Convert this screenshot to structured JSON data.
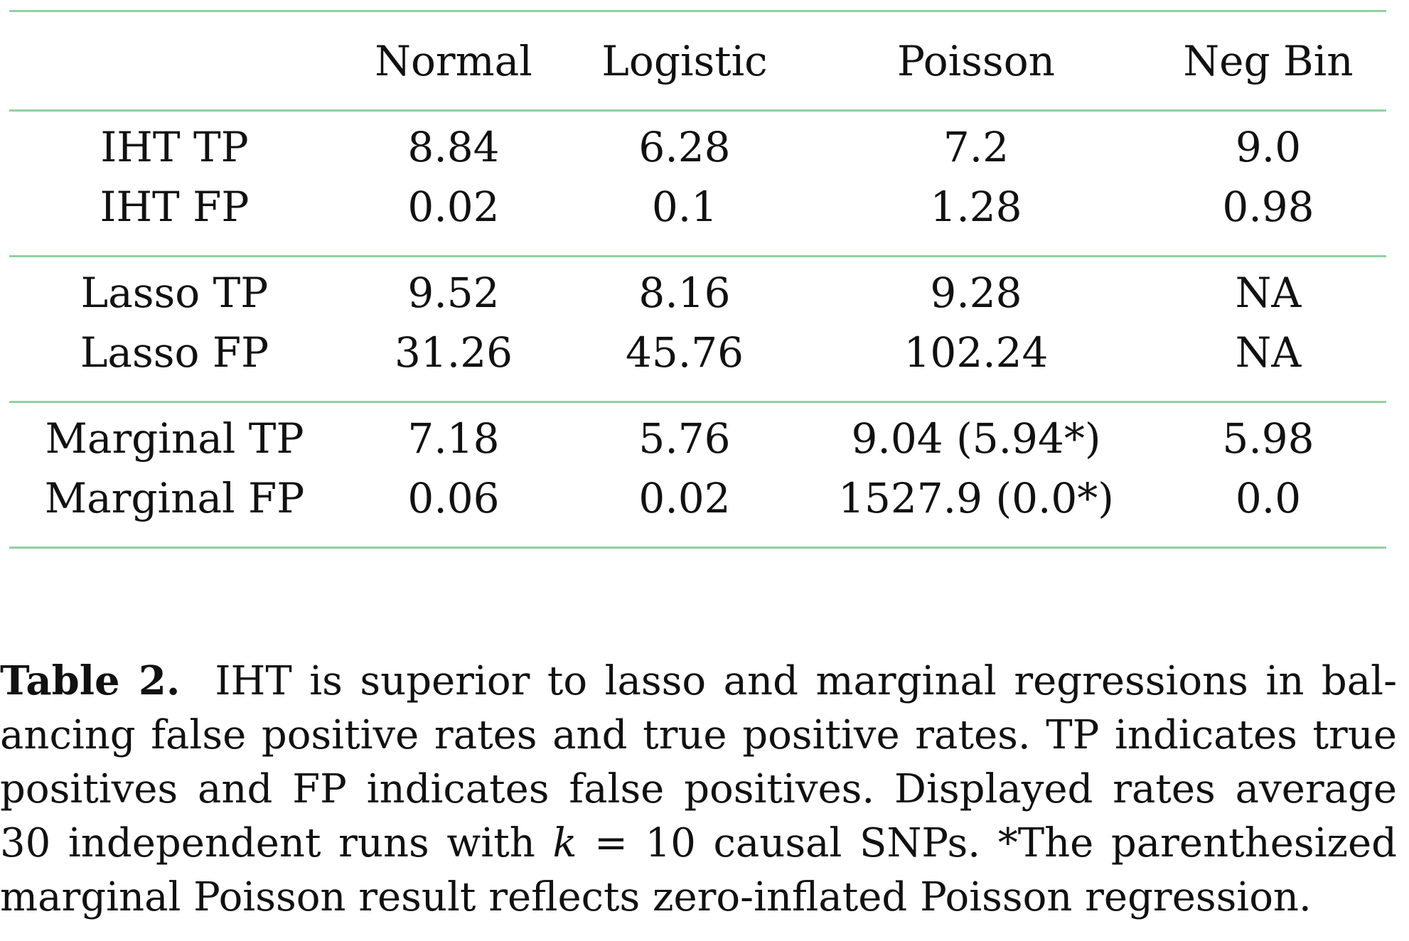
{
  "table": {
    "columns": [
      "",
      "Normal",
      "Logistic",
      "Poisson",
      "Neg Bin"
    ],
    "groups": [
      {
        "rows": [
          {
            "label": "IHT TP",
            "values": [
              "8.84",
              "6.28",
              "7.2",
              "9.0"
            ]
          },
          {
            "label": "IHT FP",
            "values": [
              "0.02",
              "0.1",
              "1.28",
              "0.98"
            ]
          }
        ]
      },
      {
        "rows": [
          {
            "label": "Lasso TP",
            "values": [
              "9.52",
              "8.16",
              "9.28",
              "NA"
            ]
          },
          {
            "label": "Lasso FP",
            "values": [
              "31.26",
              "45.76",
              "102.24",
              "NA"
            ]
          }
        ]
      },
      {
        "rows": [
          {
            "label": "Marginal TP",
            "values": [
              "7.18",
              "5.76",
              "9.04 (5.94*)",
              "5.98"
            ]
          },
          {
            "label": "Marginal FP",
            "values": [
              "0.06",
              "0.02",
              "1527.9 (0.0*)",
              "0.0"
            ]
          }
        ]
      }
    ]
  },
  "caption": {
    "label": "Table 2.",
    "lines": [
      "IHT is superior to lasso and marginal regressions in bal-",
      "ancing false positive rates and true positive rates. TP indicates true",
      "positives and FP indicates false positives. Displayed rates average",
      "30 independent runs with ",
      " = 10 causal SNPs. *The parenthesized",
      "marginal Poisson result reflects zero-inflated Poisson regression."
    ],
    "k_symbol": "k"
  },
  "colors": {
    "rule": "#8fd1a0",
    "text": "#111111"
  }
}
